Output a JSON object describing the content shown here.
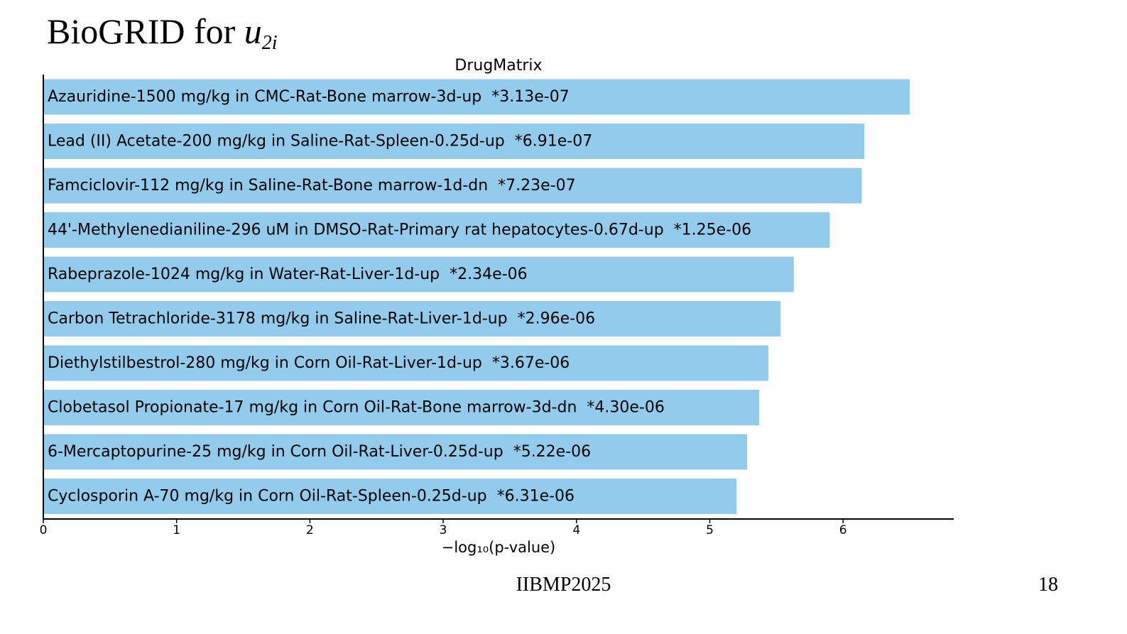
{
  "slide": {
    "title_prefix": "BioGRID for ",
    "title_var": "u",
    "title_sub": "2i",
    "footer_text": "IIBMP2025",
    "page_number": "18"
  },
  "chart_data": {
    "type": "bar",
    "orientation": "horizontal",
    "title": "DrugMatrix",
    "xlabel": "−log₁₀(p-value)",
    "ylabel": "",
    "xlim": [
      0,
      6.83
    ],
    "xticks": [
      "0",
      "1",
      "2",
      "3",
      "4",
      "5",
      "6"
    ],
    "bar_color": "#93cbec",
    "grid": false,
    "legend": "none",
    "categories": [
      "Azauridine-1500 mg/kg in CMC-Rat-Bone marrow-3d-up  *3.13e-07",
      "Lead (II) Acetate-200 mg/kg in Saline-Rat-Spleen-0.25d-up  *6.91e-07",
      "Famciclovir-112 mg/kg in Saline-Rat-Bone marrow-1d-dn  *7.23e-07",
      "44'-Methylenedianiline-296 uM in DMSO-Rat-Primary rat hepatocytes-0.67d-up  *1.25e-06",
      "Rabeprazole-1024 mg/kg in Water-Rat-Liver-1d-up  *2.34e-06",
      "Carbon Tetrachloride-3178 mg/kg in Saline-Rat-Liver-1d-up  *2.96e-06",
      "Diethylstilbestrol-280 mg/kg in Corn Oil-Rat-Liver-1d-up  *3.67e-06",
      "Clobetasol Propionate-17 mg/kg in Corn Oil-Rat-Bone marrow-3d-dn  *4.30e-06",
      "6-Mercaptopurine-25 mg/kg in Corn Oil-Rat-Liver-0.25d-up  *5.22e-06",
      "Cyclosporin A-70 mg/kg in Corn Oil-Rat-Spleen-0.25d-up  *6.31e-06"
    ],
    "values": [
      6.5,
      6.16,
      6.14,
      5.9,
      5.63,
      5.53,
      5.44,
      5.37,
      5.28,
      5.2
    ]
  }
}
